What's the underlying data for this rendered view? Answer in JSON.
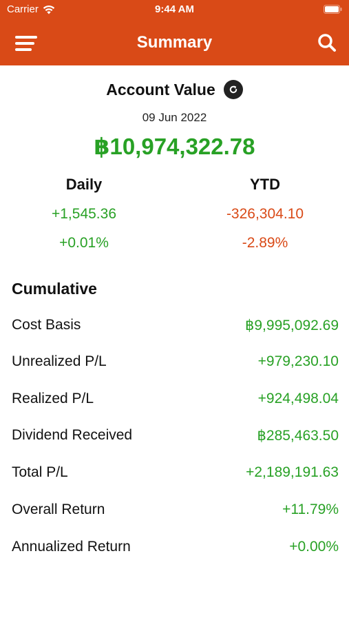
{
  "status_bar": {
    "carrier": "Carrier",
    "time": "9:44 AM"
  },
  "nav": {
    "title": "Summary",
    "menu_icon": "hamburger-menu-icon",
    "search_icon": "search-icon"
  },
  "account": {
    "title": "Account Value",
    "refresh_icon": "refresh-icon",
    "date": "09 Jun 2022",
    "value": "฿10,974,322.78"
  },
  "daily": {
    "label": "Daily",
    "amount": "+1,545.36",
    "percent": "+0.01%"
  },
  "ytd": {
    "label": "YTD",
    "amount": "-326,304.10",
    "percent": "-2.89%"
  },
  "cumulative": {
    "title": "Cumulative",
    "rows": [
      {
        "label": "Cost Basis",
        "value": "฿9,995,092.69"
      },
      {
        "label": "Unrealized P/L",
        "value": "+979,230.10"
      },
      {
        "label": "Realized P/L",
        "value": "+924,498.04"
      },
      {
        "label": "Dividend Received",
        "value": "฿285,463.50"
      },
      {
        "label": "Total P/L",
        "value": "+2,189,191.63"
      },
      {
        "label": "Overall Return",
        "value": "+11.79%"
      },
      {
        "label": "Annualized Return",
        "value": "+0.00%"
      }
    ]
  },
  "colors": {
    "header": "#d94a17",
    "positive": "#28a125",
    "negative": "#d94a17"
  }
}
